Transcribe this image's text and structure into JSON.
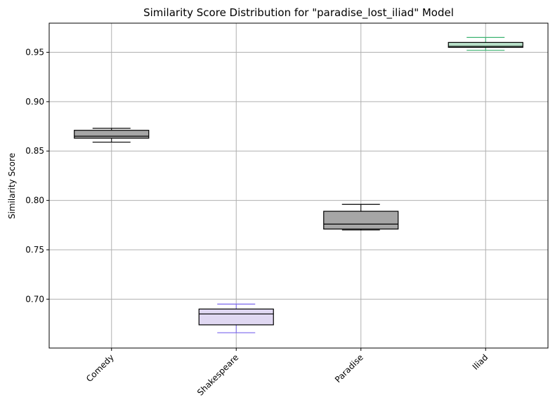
{
  "chart_data": {
    "type": "box",
    "title": "Similarity Score Distribution for \"paradise_lost_iliad\" Model",
    "xlabel": "",
    "ylabel": "Similarity Score",
    "categories": [
      "Comedy",
      "Shakespeare",
      "Paradise",
      "Iliad"
    ],
    "boxes": [
      {
        "category": "Comedy",
        "whisker_low": 0.859,
        "q1": 0.863,
        "median": 0.865,
        "q3": 0.871,
        "whisker_high": 0.873,
        "fill": "#a6a6a6",
        "whisker_color": "#000000"
      },
      {
        "category": "Shakespeare",
        "whisker_low": 0.666,
        "q1": 0.674,
        "median": 0.685,
        "q3": 0.69,
        "whisker_high": 0.695,
        "fill": "#e0d8f2",
        "whisker_color": "#7b68ee"
      },
      {
        "category": "Paradise",
        "whisker_low": 0.77,
        "q1": 0.771,
        "median": 0.776,
        "q3": 0.789,
        "whisker_high": 0.796,
        "fill": "#a6a6a6",
        "whisker_color": "#000000"
      },
      {
        "category": "Iliad",
        "whisker_low": 0.952,
        "q1": 0.955,
        "median": 0.956,
        "q3": 0.96,
        "whisker_high": 0.965,
        "fill": "#b8e0c8",
        "whisker_color": "#3cb371"
      }
    ],
    "y_ticks": [
      0.7,
      0.75,
      0.8,
      0.85,
      0.9,
      0.95
    ],
    "y_tick_labels": [
      "0.70",
      "0.75",
      "0.80",
      "0.85",
      "0.90",
      "0.95"
    ],
    "ylim": [
      0.6505,
      0.9795
    ],
    "grid": true,
    "x_tick_rotation_deg": 45
  }
}
